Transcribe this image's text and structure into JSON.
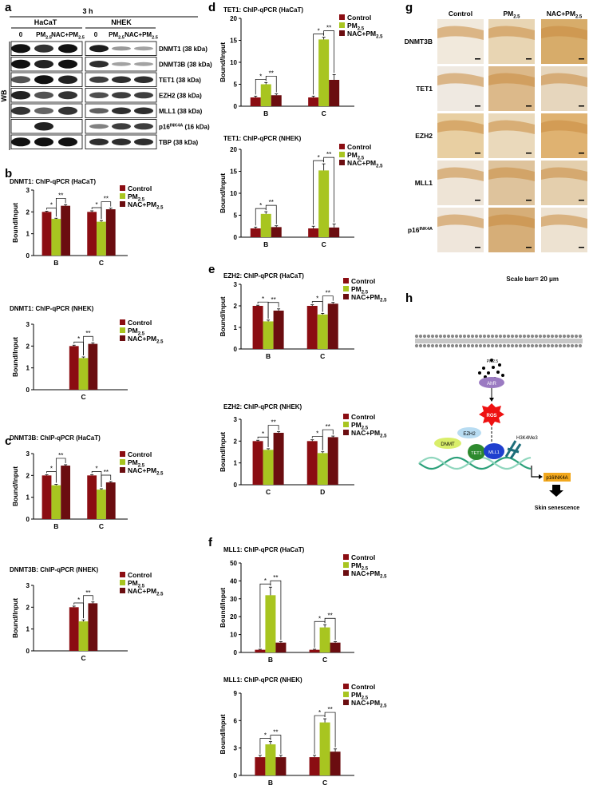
{
  "panels": {
    "a": "a",
    "b": "b",
    "c": "c",
    "d": "d",
    "e": "e",
    "f": "f",
    "g": "g",
    "h": "h"
  },
  "legend": {
    "control": "Control",
    "pm": "PM",
    "pm_sub": "2.5",
    "nac": "NAC+PM",
    "nac_sub": "2.5"
  },
  "colors": {
    "control": "#8b0d12",
    "pm": "#a8c520",
    "nac": "#6b0d10",
    "blot": "#111111"
  },
  "ylabel": "Bound/Input",
  "wb": {
    "time": "3 h",
    "cell_lines": [
      "HaCaT",
      "NHEK"
    ],
    "lanes": [
      "0",
      "PM",
      "NAC+PM"
    ],
    "lane_sub": "2.5",
    "side_label": "WB",
    "rows": [
      {
        "label": "DNMT1 (38 kDa)"
      },
      {
        "label": "DNMT3B (38 kDa)"
      },
      {
        "label": "TET1 (38 kDa)"
      },
      {
        "label": "EZH2 (38 kDa)"
      },
      {
        "label": "MLL1 (38 kDa)"
      },
      {
        "label": "p16INK4A (16 kDa)"
      },
      {
        "label": "TBP (38 kDa)"
      }
    ]
  },
  "ihc": {
    "columns": [
      "Control",
      "PM2.5",
      "NAC+PM2.5"
    ],
    "rows": [
      "DNMT3B",
      "TET1",
      "EZH2",
      "MLL1",
      "p16INK4A"
    ],
    "scale": "Scale bar= 20 μm"
  },
  "pathway": {
    "pm": "PM2.5",
    "ahr": "AhR",
    "ros": "ROS",
    "ezh2": "EZH2",
    "dnmt": "DNMT",
    "tet1": "TET1",
    "mll1": "MLL1",
    "mark": "H3K4Me3",
    "gene": "p16INK4A",
    "outcome": "Skin senescence"
  },
  "chart_data": [
    {
      "panel": "b",
      "type": "bar",
      "title": "DNMT1: ChIP-qPCR (HaCaT)",
      "ylabel": "Bound/Input",
      "ylim": [
        0,
        3
      ],
      "yticks": [
        0,
        1,
        2,
        3
      ],
      "categories": [
        "B",
        "C"
      ],
      "series": [
        {
          "name": "Control",
          "values": [
            2.0,
            2.0
          ],
          "err": [
            0.03,
            0.05
          ]
        },
        {
          "name": "PM2.5",
          "values": [
            1.68,
            1.55
          ],
          "err": [
            0.03,
            0.05
          ]
        },
        {
          "name": "NAC+PM2.5",
          "values": [
            2.28,
            2.12
          ],
          "err": [
            0.05,
            0.05
          ]
        }
      ],
      "significance": [
        [
          "*",
          "**"
        ],
        [
          "*",
          "**"
        ]
      ]
    },
    {
      "panel": "b",
      "type": "bar",
      "title": "DNMT1: ChIP-qPCR (NHEK)",
      "ylabel": "Bound/Input",
      "ylim": [
        0,
        3
      ],
      "yticks": [
        0,
        1,
        2,
        3
      ],
      "categories": [
        "C"
      ],
      "series": [
        {
          "name": "Control",
          "values": [
            2.0
          ],
          "err": [
            0.04
          ]
        },
        {
          "name": "PM2.5",
          "values": [
            1.45
          ],
          "err": [
            0.05
          ]
        },
        {
          "name": "NAC+PM2.5",
          "values": [
            2.1
          ],
          "err": [
            0.05
          ]
        }
      ],
      "significance": [
        [
          "*",
          "**"
        ]
      ]
    },
    {
      "panel": "c",
      "type": "bar",
      "title": "DNMT3B: ChIP-qPCR (HaCaT)",
      "ylabel": "Bound/Input",
      "ylim": [
        0,
        3
      ],
      "yticks": [
        0,
        1,
        2,
        3
      ],
      "categories": [
        "B",
        "C"
      ],
      "series": [
        {
          "name": "Control",
          "values": [
            2.0,
            2.0
          ],
          "err": [
            0.03,
            0.03
          ]
        },
        {
          "name": "PM2.5",
          "values": [
            1.55,
            1.35
          ],
          "err": [
            0.04,
            0.04
          ]
        },
        {
          "name": "NAC+PM2.5",
          "values": [
            2.45,
            1.68
          ],
          "err": [
            0.04,
            0.04
          ]
        }
      ],
      "significance": [
        [
          "*",
          "**"
        ],
        [
          "*",
          "**"
        ]
      ]
    },
    {
      "panel": "c",
      "type": "bar",
      "title": "DNMT3B: ChIP-qPCR (NHEK)",
      "ylabel": "Bound/Input",
      "ylim": [
        0,
        3
      ],
      "yticks": [
        0,
        1,
        2,
        3
      ],
      "categories": [
        "C"
      ],
      "series": [
        {
          "name": "Control",
          "values": [
            2.0
          ],
          "err": [
            0.05
          ]
        },
        {
          "name": "PM2.5",
          "values": [
            1.35
          ],
          "err": [
            0.07
          ]
        },
        {
          "name": "NAC+PM2.5",
          "values": [
            2.18
          ],
          "err": [
            0.06
          ]
        }
      ],
      "significance": [
        [
          "*",
          "**"
        ]
      ]
    },
    {
      "panel": "d",
      "type": "bar",
      "title": "TET1: ChIP-qPCR (HaCaT)",
      "ylabel": "Bound/Input",
      "ylim": [
        0,
        20
      ],
      "yticks": [
        0,
        5,
        10,
        15,
        20
      ],
      "categories": [
        "B",
        "C"
      ],
      "series": [
        {
          "name": "Control",
          "values": [
            2.0,
            2.0
          ],
          "err": [
            0.3,
            0.3
          ]
        },
        {
          "name": "PM2.5",
          "values": [
            5.0,
            15.2
          ],
          "err": [
            0.4,
            0.5
          ]
        },
        {
          "name": "NAC+PM2.5",
          "values": [
            2.5,
            6.0
          ],
          "err": [
            0.3,
            1.2
          ]
        }
      ],
      "significance": [
        [
          "*",
          "**"
        ],
        [
          "*",
          "**"
        ]
      ]
    },
    {
      "panel": "d",
      "type": "bar",
      "title": "TET1: ChIP-qPCR (NHEK)",
      "ylabel": "Bound/Input",
      "ylim": [
        0,
        20
      ],
      "yticks": [
        0,
        5,
        10,
        15,
        20
      ],
      "categories": [
        "B",
        "C"
      ],
      "series": [
        {
          "name": "Control",
          "values": [
            2.0,
            2.0
          ],
          "err": [
            0.3,
            0.5
          ]
        },
        {
          "name": "PM2.5",
          "values": [
            5.3,
            15.2
          ],
          "err": [
            0.5,
            1.5
          ]
        },
        {
          "name": "NAC+PM2.5",
          "values": [
            2.3,
            2.2
          ],
          "err": [
            0.3,
            0.8
          ]
        }
      ],
      "significance": [
        [
          "*",
          "**"
        ],
        [
          "*",
          "**"
        ]
      ]
    },
    {
      "panel": "e",
      "type": "bar",
      "title": "EZH2: ChIP-qPCR (HaCaT)",
      "ylabel": "Bound/Input",
      "ylim": [
        0,
        3
      ],
      "yticks": [
        0,
        1,
        2,
        3
      ],
      "categories": [
        "B",
        "C"
      ],
      "series": [
        {
          "name": "Control",
          "values": [
            2.0,
            2.0
          ],
          "err": [
            0.03,
            0.05
          ]
        },
        {
          "name": "PM2.5",
          "values": [
            1.28,
            1.6
          ],
          "err": [
            0.06,
            0.05
          ]
        },
        {
          "name": "NAC+PM2.5",
          "values": [
            1.78,
            2.1
          ],
          "err": [
            0.08,
            0.06
          ]
        }
      ],
      "significance": [
        [
          "*",
          "**"
        ],
        [
          "*",
          "**"
        ]
      ]
    },
    {
      "panel": "e",
      "type": "bar",
      "title": "EZH2: ChIP-qPCR (NHEK)",
      "ylabel": "Bound/Input",
      "ylim": [
        0,
        3
      ],
      "yticks": [
        0,
        1,
        2,
        3
      ],
      "categories": [
        "C",
        "D"
      ],
      "series": [
        {
          "name": "Control",
          "values": [
            2.0,
            2.0
          ],
          "err": [
            0.04,
            0.06
          ]
        },
        {
          "name": "PM2.5",
          "values": [
            1.6,
            1.45
          ],
          "err": [
            0.05,
            0.06
          ]
        },
        {
          "name": "NAC+PM2.5",
          "values": [
            2.38,
            2.18
          ],
          "err": [
            0.05,
            0.05
          ]
        }
      ],
      "significance": [
        [
          "*",
          "**"
        ],
        [
          "*",
          "**"
        ]
      ]
    },
    {
      "panel": "f",
      "type": "bar",
      "title": "MLL1: ChIP-qPCR (HaCaT)",
      "ylabel": "Bound/Input",
      "ylim": [
        0,
        50
      ],
      "yticks": [
        0,
        10,
        20,
        30,
        40,
        50
      ],
      "categories": [
        "B",
        "C"
      ],
      "series": [
        {
          "name": "Control",
          "values": [
            1.5,
            1.5
          ],
          "err": [
            0.3,
            0.3
          ]
        },
        {
          "name": "PM2.5",
          "values": [
            32.0,
            14.0
          ],
          "err": [
            4.5,
            1.5
          ]
        },
        {
          "name": "NAC+PM2.5",
          "values": [
            5.5,
            5.5
          ],
          "err": [
            0.5,
            0.5
          ]
        }
      ],
      "significance": [
        [
          "*",
          "**"
        ],
        [
          "*",
          "**"
        ]
      ]
    },
    {
      "panel": "f",
      "type": "bar",
      "title": "MLL1: ChIP-qPCR (NHEK)",
      "ylabel": "Bound/Input",
      "ylim": [
        0,
        9
      ],
      "yticks": [
        0,
        3,
        6,
        9
      ],
      "categories": [
        "B",
        "C"
      ],
      "series": [
        {
          "name": "Control",
          "values": [
            2.0,
            2.0
          ],
          "err": [
            0.2,
            0.2
          ]
        },
        {
          "name": "PM2.5",
          "values": [
            3.4,
            5.8
          ],
          "err": [
            0.3,
            0.4
          ]
        },
        {
          "name": "NAC+PM2.5",
          "values": [
            2.0,
            2.6
          ],
          "err": [
            0.2,
            0.3
          ]
        }
      ],
      "significance": [
        [
          "*",
          "**"
        ],
        [
          "*",
          "**"
        ]
      ]
    }
  ]
}
